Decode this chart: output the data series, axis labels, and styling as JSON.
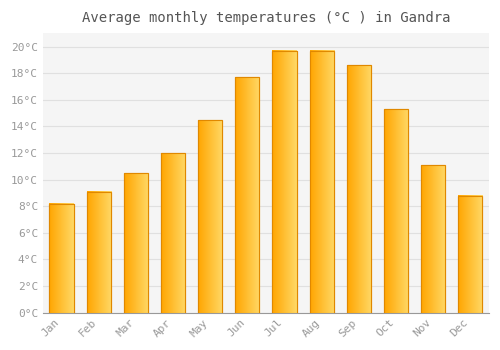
{
  "title": "Average monthly temperatures (°C ) in Gandra",
  "months": [
    "Jan",
    "Feb",
    "Mar",
    "Apr",
    "May",
    "Jun",
    "Jul",
    "Aug",
    "Sep",
    "Oct",
    "Nov",
    "Dec"
  ],
  "values": [
    8.2,
    9.1,
    10.5,
    12.0,
    14.5,
    17.7,
    19.7,
    19.7,
    18.6,
    15.3,
    11.1,
    8.8
  ],
  "bar_color_left": "#FFA500",
  "bar_color_right": "#FFD966",
  "bar_color_solid": "#FFBA30",
  "bar_edge_color": "#E08800",
  "background_color": "#FFFFFF",
  "plot_bg_color": "#F5F5F5",
  "grid_color": "#E0E0E0",
  "text_color": "#999999",
  "title_color": "#555555",
  "ylim": [
    0,
    21
  ],
  "yticks": [
    0,
    2,
    4,
    6,
    8,
    10,
    12,
    14,
    16,
    18,
    20
  ],
  "title_fontsize": 10,
  "tick_fontsize": 8,
  "bar_width": 0.65
}
